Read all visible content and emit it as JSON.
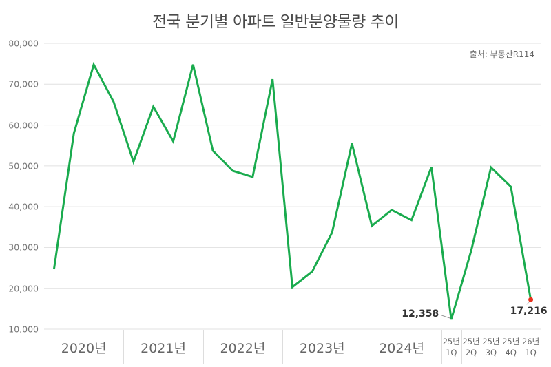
{
  "title": "전국 분기별 아파트 일반분양물량 추이",
  "source": "출처: 부동산R114",
  "colors": {
    "line": "#1aab4e",
    "highlight_point": "#e8321e",
    "grid": "#e0e0e0",
    "axis_text": "#777777"
  },
  "y_axis": {
    "ticks": [
      "80,000",
      "70,000",
      "60,000",
      "50,000",
      "40,000",
      "30,000",
      "20,000",
      "10,000"
    ]
  },
  "x_axis": {
    "groups": [
      {
        "label": "2020년",
        "type": "year"
      },
      {
        "label": "2021년",
        "type": "year"
      },
      {
        "label": "2022년",
        "type": "year"
      },
      {
        "label": "2023년",
        "type": "year"
      },
      {
        "label": "2024년",
        "type": "year"
      },
      {
        "label": "25년",
        "sub": "1Q",
        "type": "quarter"
      },
      {
        "label": "25년",
        "sub": "2Q",
        "type": "quarter"
      },
      {
        "label": "25년",
        "sub": "3Q",
        "type": "quarter"
      },
      {
        "label": "25년",
        "sub": "4Q",
        "type": "quarter"
      },
      {
        "label": "26년",
        "sub": "1Q",
        "type": "quarter"
      }
    ]
  },
  "annotations": {
    "low": "12,358",
    "last": "17,216"
  },
  "chart_data": {
    "type": "line",
    "title": "전국 분기별 아파트 일반분양물량 추이",
    "subtitle": "출처: 부동산R114",
    "xlabel": "",
    "ylabel": "",
    "ylim": [
      10000,
      80000
    ],
    "grid": true,
    "legend": "none",
    "categories": [
      "2020 1Q",
      "2020 2Q",
      "2020 3Q",
      "2020 4Q",
      "2021 1Q",
      "2021 2Q",
      "2021 3Q",
      "2021 4Q",
      "2022 1Q",
      "2022 2Q",
      "2022 3Q",
      "2022 4Q",
      "2023 1Q",
      "2023 2Q",
      "2023 3Q",
      "2023 4Q",
      "2024 1Q",
      "2024 2Q",
      "2024 3Q",
      "2024 4Q",
      "25년 1Q",
      "25년 2Q",
      "25년 3Q",
      "25년 4Q",
      "26년 1Q"
    ],
    "series": [
      {
        "name": "일반분양물량",
        "values": [
          24700,
          58000,
          74800,
          65700,
          51000,
          64500,
          56000,
          74800,
          53700,
          48800,
          47300,
          71200,
          20300,
          24100,
          33700,
          55500,
          35300,
          39200,
          36700,
          49700,
          12358,
          29200,
          49600,
          44900,
          17216
        ]
      }
    ],
    "data_labels": [
      {
        "category": "25년 1Q",
        "value": "12,358"
      },
      {
        "category": "26년 1Q",
        "value": "17,216"
      }
    ],
    "tick_labels": {
      "y": [
        "10,000",
        "20,000",
        "30,000",
        "40,000",
        "50,000",
        "60,000",
        "70,000",
        "80,000"
      ],
      "x": [
        "2020년",
        "2021년",
        "2022년",
        "2023년",
        "2024년",
        "25년 1Q",
        "25년 2Q",
        "25년 3Q",
        "25년 4Q",
        "26년 1Q"
      ]
    }
  }
}
